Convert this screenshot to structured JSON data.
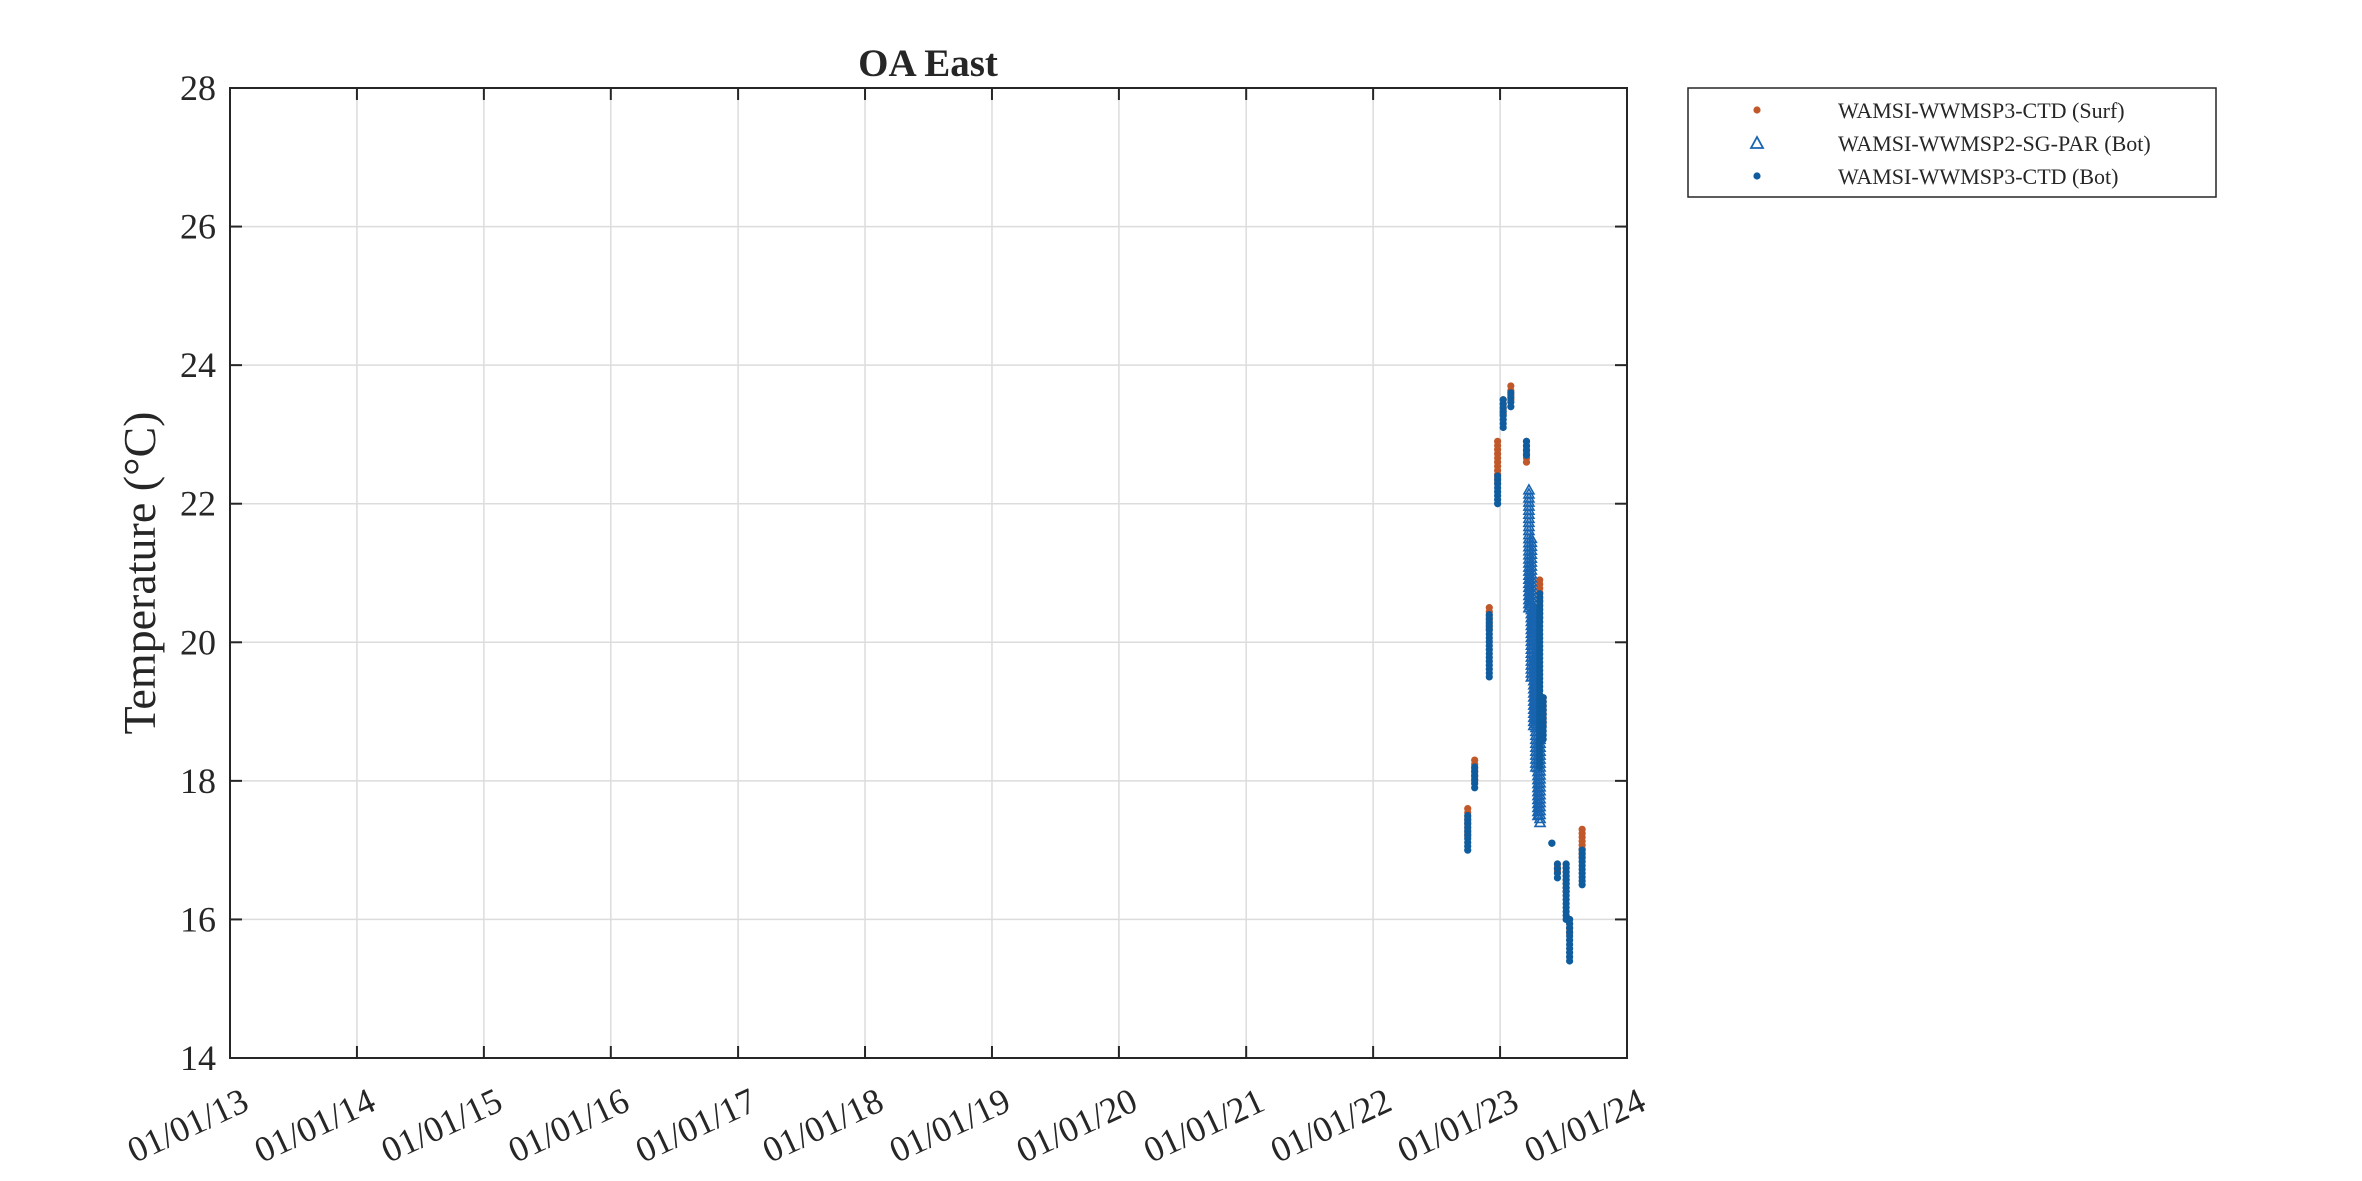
{
  "chart_data": {
    "type": "scatter",
    "title": "OA East",
    "xlabel": "",
    "ylabel": "Temperature (°C)",
    "xlim": [
      "2013-01-01",
      "2024-01-01"
    ],
    "ylim": [
      14,
      28
    ],
    "x_ticks": [
      "01/01/13",
      "01/01/14",
      "01/01/15",
      "01/01/16",
      "01/01/17",
      "01/01/18",
      "01/01/19",
      "01/01/20",
      "01/01/21",
      "01/01/22",
      "01/01/23",
      "01/01/24"
    ],
    "y_ticks": [
      "14",
      "16",
      "18",
      "20",
      "22",
      "24",
      "26",
      "28"
    ],
    "grid": true,
    "legend_position": "outside-top-right",
    "series": [
      {
        "name": "WAMSI-WWMSP3-CTD (Surf)",
        "marker": "dot",
        "color": "#C0582A",
        "segments": [
          {
            "x": "2022-09-30",
            "y_min": 17.2,
            "y_max": 17.6
          },
          {
            "x": "2022-10-20",
            "y_min": 18.0,
            "y_max": 18.3
          },
          {
            "x": "2022-12-01",
            "y_min": 20.2,
            "y_max": 20.5
          },
          {
            "x": "2022-12-25",
            "y_min": 22.3,
            "y_max": 22.9
          },
          {
            "x": "2023-01-10",
            "y_min": 23.3,
            "y_max": 23.5
          },
          {
            "x": "2023-02-01",
            "y_min": 23.5,
            "y_max": 23.7
          },
          {
            "x": "2023-03-18",
            "y_min": 22.6,
            "y_max": 22.9
          },
          {
            "x": "2023-04-25",
            "y_min": 20.3,
            "y_max": 20.9
          },
          {
            "x": "2023-05-05",
            "y_min": 18.8,
            "y_max": 19.2
          },
          {
            "x": "2023-06-15",
            "y_min": 16.7,
            "y_max": 16.8
          },
          {
            "x": "2023-07-10",
            "y_min": 16.4,
            "y_max": 16.8
          },
          {
            "x": "2023-07-20",
            "y_min": 15.8,
            "y_max": 16.0
          },
          {
            "x": "2023-08-25",
            "y_min": 16.9,
            "y_max": 17.3
          }
        ]
      },
      {
        "name": "WAMSI-WWMSP2-SG-PAR (Bot)",
        "marker": "triangle",
        "color": "#1864B0",
        "segments": [
          {
            "x": "2023-03-25",
            "y_min": 20.5,
            "y_max": 22.2
          },
          {
            "x": "2023-04-01",
            "y_min": 19.5,
            "y_max": 21.5
          },
          {
            "x": "2023-04-08",
            "y_min": 18.8,
            "y_max": 20.5
          },
          {
            "x": "2023-04-14",
            "y_min": 18.2,
            "y_max": 19.8
          },
          {
            "x": "2023-04-20",
            "y_min": 17.5,
            "y_max": 19.0
          },
          {
            "x": "2023-04-26",
            "y_min": 17.4,
            "y_max": 18.6
          }
        ]
      },
      {
        "name": "WAMSI-WWMSP3-CTD (Bot)",
        "marker": "dot",
        "color": "#0F5C9E",
        "segments": [
          {
            "x": "2022-09-30",
            "y_min": 17.0,
            "y_max": 17.5
          },
          {
            "x": "2022-10-20",
            "y_min": 17.9,
            "y_max": 18.2
          },
          {
            "x": "2022-12-01",
            "y_min": 19.5,
            "y_max": 20.4
          },
          {
            "x": "2022-12-25",
            "y_min": 22.0,
            "y_max": 22.4
          },
          {
            "x": "2023-01-10",
            "y_min": 23.1,
            "y_max": 23.5
          },
          {
            "x": "2023-02-01",
            "y_min": 23.4,
            "y_max": 23.6
          },
          {
            "x": "2023-03-18",
            "y_min": 22.7,
            "y_max": 22.9
          },
          {
            "x": "2023-04-25",
            "y_min": 18.2,
            "y_max": 20.7
          },
          {
            "x": "2023-05-05",
            "y_min": 18.6,
            "y_max": 19.2
          },
          {
            "x": "2023-05-30",
            "y_min": 17.1,
            "y_max": 17.1
          },
          {
            "x": "2023-06-15",
            "y_min": 16.6,
            "y_max": 16.8
          },
          {
            "x": "2023-07-10",
            "y_min": 16.0,
            "y_max": 16.8
          },
          {
            "x": "2023-07-20",
            "y_min": 15.4,
            "y_max": 16.0
          },
          {
            "x": "2023-08-25",
            "y_min": 16.5,
            "y_max": 17.0
          }
        ]
      }
    ]
  }
}
